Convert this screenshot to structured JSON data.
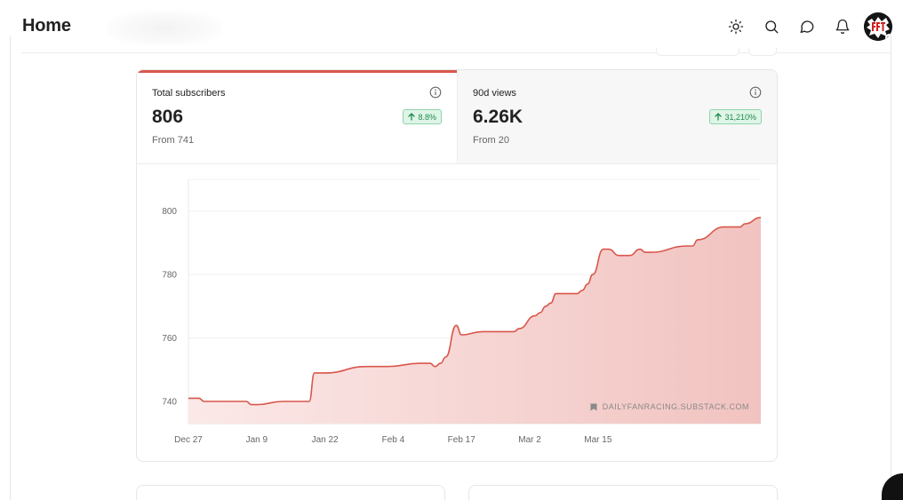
{
  "header": {
    "title": "Home",
    "icons": {
      "theme": "sun-icon",
      "search": "search-icon",
      "messages": "chat-bubble-icon",
      "notifications": "bell-icon",
      "avatar": "avatar"
    }
  },
  "stats": {
    "tabs": [
      {
        "label": "Total subscribers",
        "value": "806",
        "sub": "From 741",
        "change": "8.8%",
        "active": true
      },
      {
        "label": "90d views",
        "value": "6.26K",
        "sub": "From 20",
        "change": "31,210%",
        "active": false
      }
    ]
  },
  "chart_data": {
    "type": "area",
    "x_tick_labels": [
      "Dec 27",
      "Jan 9",
      "Jan 22",
      "Feb 4",
      "Feb 17",
      "Mar 2",
      "Mar 15"
    ],
    "y_ticks": [
      740,
      760,
      780,
      800
    ],
    "ylim": [
      733,
      810
    ],
    "watermark": "DAILYFANRACING.SUBSTACK.COM",
    "colors": {
      "line": "#d9574b",
      "fill_top": "#f1c3c0",
      "fill_bottom": "#fbe9e8"
    },
    "series": [
      {
        "day": [
          0,
          2,
          3,
          5,
          8,
          9,
          11,
          12,
          13,
          18,
          19,
          20,
          22,
          23,
          24,
          26,
          34,
          35,
          37,
          38,
          44,
          45,
          46,
          47,
          48,
          49,
          51,
          52,
          56,
          57,
          58,
          59,
          62,
          63,
          66,
          67,
          68,
          69,
          70,
          71,
          73,
          74,
          75,
          76,
          77,
          79,
          80,
          82,
          83,
          84,
          86,
          87,
          88,
          95,
          96,
          97,
          102,
          105,
          106,
          109
        ],
        "value": [
          741,
          741,
          740,
          740,
          740,
          740,
          740,
          739,
          739,
          740,
          740,
          740,
          740,
          740,
          749,
          749,
          751,
          751,
          751,
          751,
          752,
          752,
          752,
          751,
          752,
          754,
          764,
          761,
          762,
          762,
          762,
          762,
          762,
          763,
          767,
          768,
          770,
          771,
          774,
          774,
          774,
          774,
          775,
          777,
          780,
          788,
          788,
          786,
          786,
          786,
          788,
          787,
          787,
          789,
          789,
          791,
          795,
          795,
          796,
          798
        ]
      }
    ]
  }
}
